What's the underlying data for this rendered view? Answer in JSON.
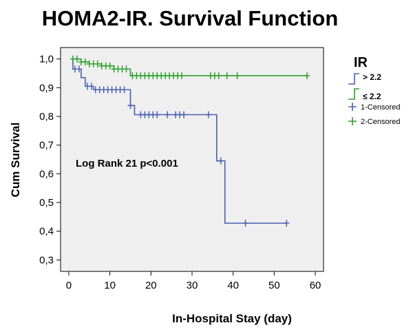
{
  "chart_data": {
    "type": "line",
    "title": "HOMA2-IR. Survival Function",
    "xlabel": "In-Hospital Stay (day)",
    "ylabel": "Cum Survival",
    "xlim": [
      -2,
      62
    ],
    "ylim": [
      0.26,
      1.04
    ],
    "xticks": [
      0,
      10,
      20,
      30,
      40,
      50,
      60
    ],
    "yticks": [
      0.3,
      0.4,
      0.5,
      0.6,
      0.7,
      0.8,
      0.9,
      1.0
    ],
    "ytick_labels": [
      "0,3",
      "0,4",
      "0,5",
      "0,6",
      "0,7",
      "0,8",
      "0,9",
      "1,0"
    ],
    "grid": false,
    "annotation": "Log Rank 21  p<0.001",
    "legend": {
      "title": "IR",
      "position": "right",
      "entries": [
        "> 2.2",
        "≤ 2.2",
        "1-Censored",
        "2-Censored"
      ]
    },
    "series": [
      {
        "name": "> 2.2",
        "color": "#4a5fb0",
        "steps": [
          [
            1,
            0.965
          ],
          [
            3,
            0.935
          ],
          [
            4,
            0.905
          ],
          [
            6,
            0.893
          ],
          [
            15,
            0.838
          ],
          [
            16,
            0.806
          ],
          [
            36,
            0.645
          ],
          [
            38,
            0.428
          ]
        ],
        "end_x": 53,
        "censored": [
          [
            1.5,
            0.965
          ],
          [
            2.5,
            0.965
          ],
          [
            4.5,
            0.905
          ],
          [
            5.5,
            0.905
          ],
          [
            6.5,
            0.893
          ],
          [
            7.5,
            0.893
          ],
          [
            8.5,
            0.893
          ],
          [
            9.5,
            0.893
          ],
          [
            10.5,
            0.893
          ],
          [
            11.5,
            0.893
          ],
          [
            12.5,
            0.893
          ],
          [
            13.5,
            0.893
          ],
          [
            15,
            0.838
          ],
          [
            17.5,
            0.806
          ],
          [
            18.5,
            0.806
          ],
          [
            19.5,
            0.806
          ],
          [
            20.5,
            0.806
          ],
          [
            21.5,
            0.806
          ],
          [
            24,
            0.806
          ],
          [
            26,
            0.806
          ],
          [
            27,
            0.806
          ],
          [
            28,
            0.806
          ],
          [
            34,
            0.806
          ],
          [
            37,
            0.645
          ],
          [
            43,
            0.428
          ],
          [
            53,
            0.428
          ]
        ]
      },
      {
        "name": "≤ 2.2",
        "color": "#2ca02c",
        "steps": [
          [
            3,
            0.99
          ],
          [
            5,
            0.983
          ],
          [
            8,
            0.976
          ],
          [
            11,
            0.965
          ],
          [
            15,
            0.942
          ]
        ],
        "end_x": 58,
        "censored": [
          [
            1,
            1.0
          ],
          [
            2,
            1.0
          ],
          [
            3,
            0.99
          ],
          [
            4,
            0.99
          ],
          [
            5,
            0.983
          ],
          [
            6,
            0.983
          ],
          [
            7,
            0.983
          ],
          [
            8,
            0.976
          ],
          [
            9,
            0.976
          ],
          [
            10,
            0.976
          ],
          [
            11,
            0.965
          ],
          [
            12,
            0.965
          ],
          [
            13,
            0.965
          ],
          [
            14,
            0.965
          ],
          [
            15.5,
            0.942
          ],
          [
            16.5,
            0.942
          ],
          [
            17.5,
            0.942
          ],
          [
            18.5,
            0.942
          ],
          [
            19.5,
            0.942
          ],
          [
            20.5,
            0.942
          ],
          [
            21.5,
            0.942
          ],
          [
            22.5,
            0.942
          ],
          [
            23.5,
            0.942
          ],
          [
            24.5,
            0.942
          ],
          [
            25.5,
            0.942
          ],
          [
            26.5,
            0.942
          ],
          [
            27.5,
            0.942
          ],
          [
            34.5,
            0.942
          ],
          [
            35.5,
            0.942
          ],
          [
            36.5,
            0.942
          ],
          [
            38.5,
            0.942
          ],
          [
            41,
            0.942
          ],
          [
            58,
            0.942
          ]
        ]
      }
    ]
  }
}
